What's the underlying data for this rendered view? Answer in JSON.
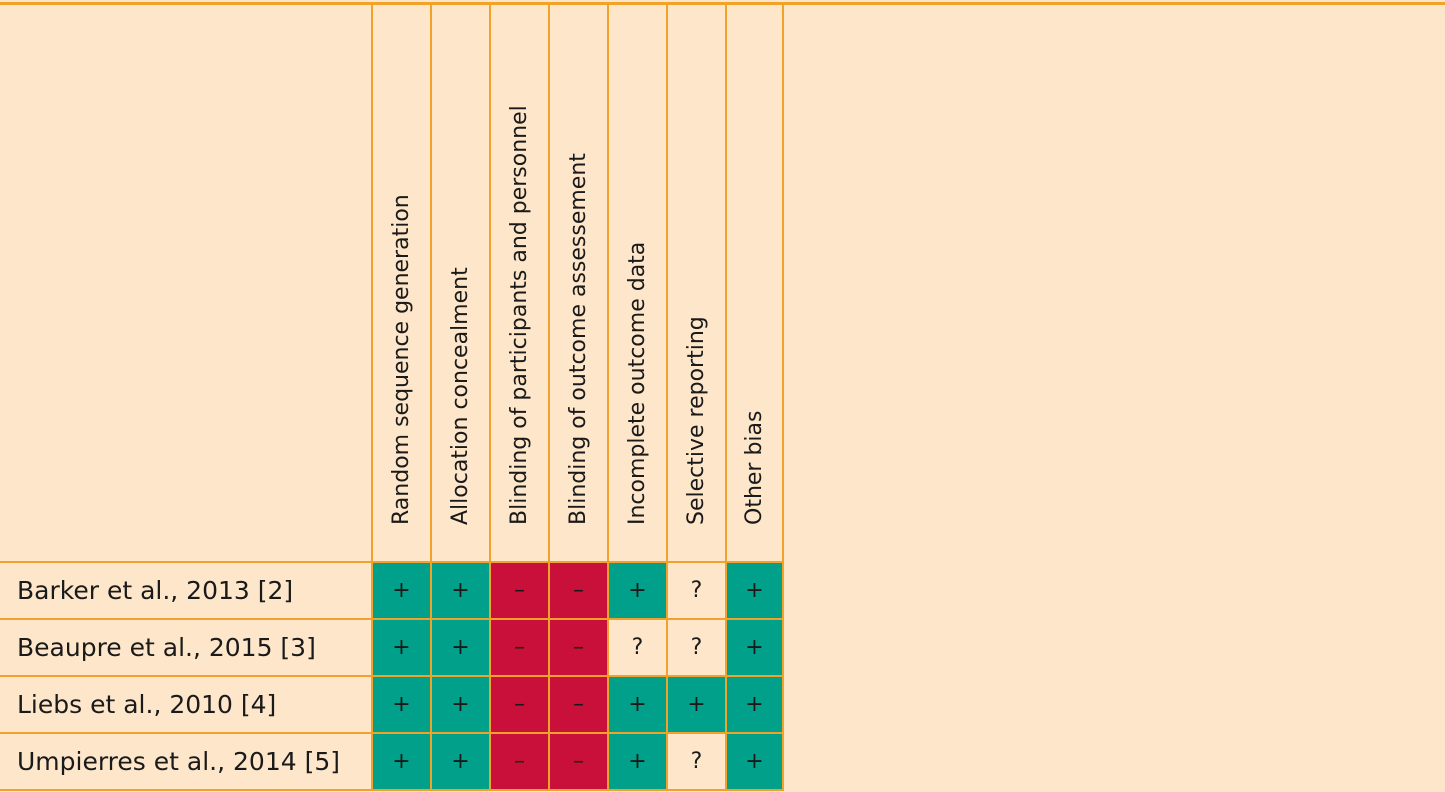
{
  "table": {
    "domains": [
      "Random sequence generation",
      "Allocation concealment",
      "Blinding of participants and personnel",
      "Blinding of outcome assessement",
      "Incomplete outcome data",
      "Selective reporting",
      "Other bias"
    ],
    "studies": [
      {
        "label": "Barker et al., 2013 [2]",
        "ratings": [
          "+",
          "+",
          "–",
          "–",
          "+",
          "?",
          "+"
        ]
      },
      {
        "label": "Beaupre et al., 2015 [3]",
        "ratings": [
          "+",
          "+",
          "–",
          "–",
          "?",
          "?",
          "+"
        ]
      },
      {
        "label": "Liebs et al., 2010 [4]",
        "ratings": [
          "+",
          "+",
          "–",
          "–",
          "+",
          "+",
          "+"
        ]
      },
      {
        "label": "Umpierres et al., 2014 [5]",
        "ratings": [
          "+",
          "+",
          "–",
          "–",
          "+",
          "?",
          "+"
        ]
      }
    ],
    "colors": {
      "low_risk": "#00a08b",
      "high_risk": "#c8103a",
      "unclear": "#fde6c9",
      "border": "#f0a229",
      "background": "#fde6c9"
    }
  }
}
